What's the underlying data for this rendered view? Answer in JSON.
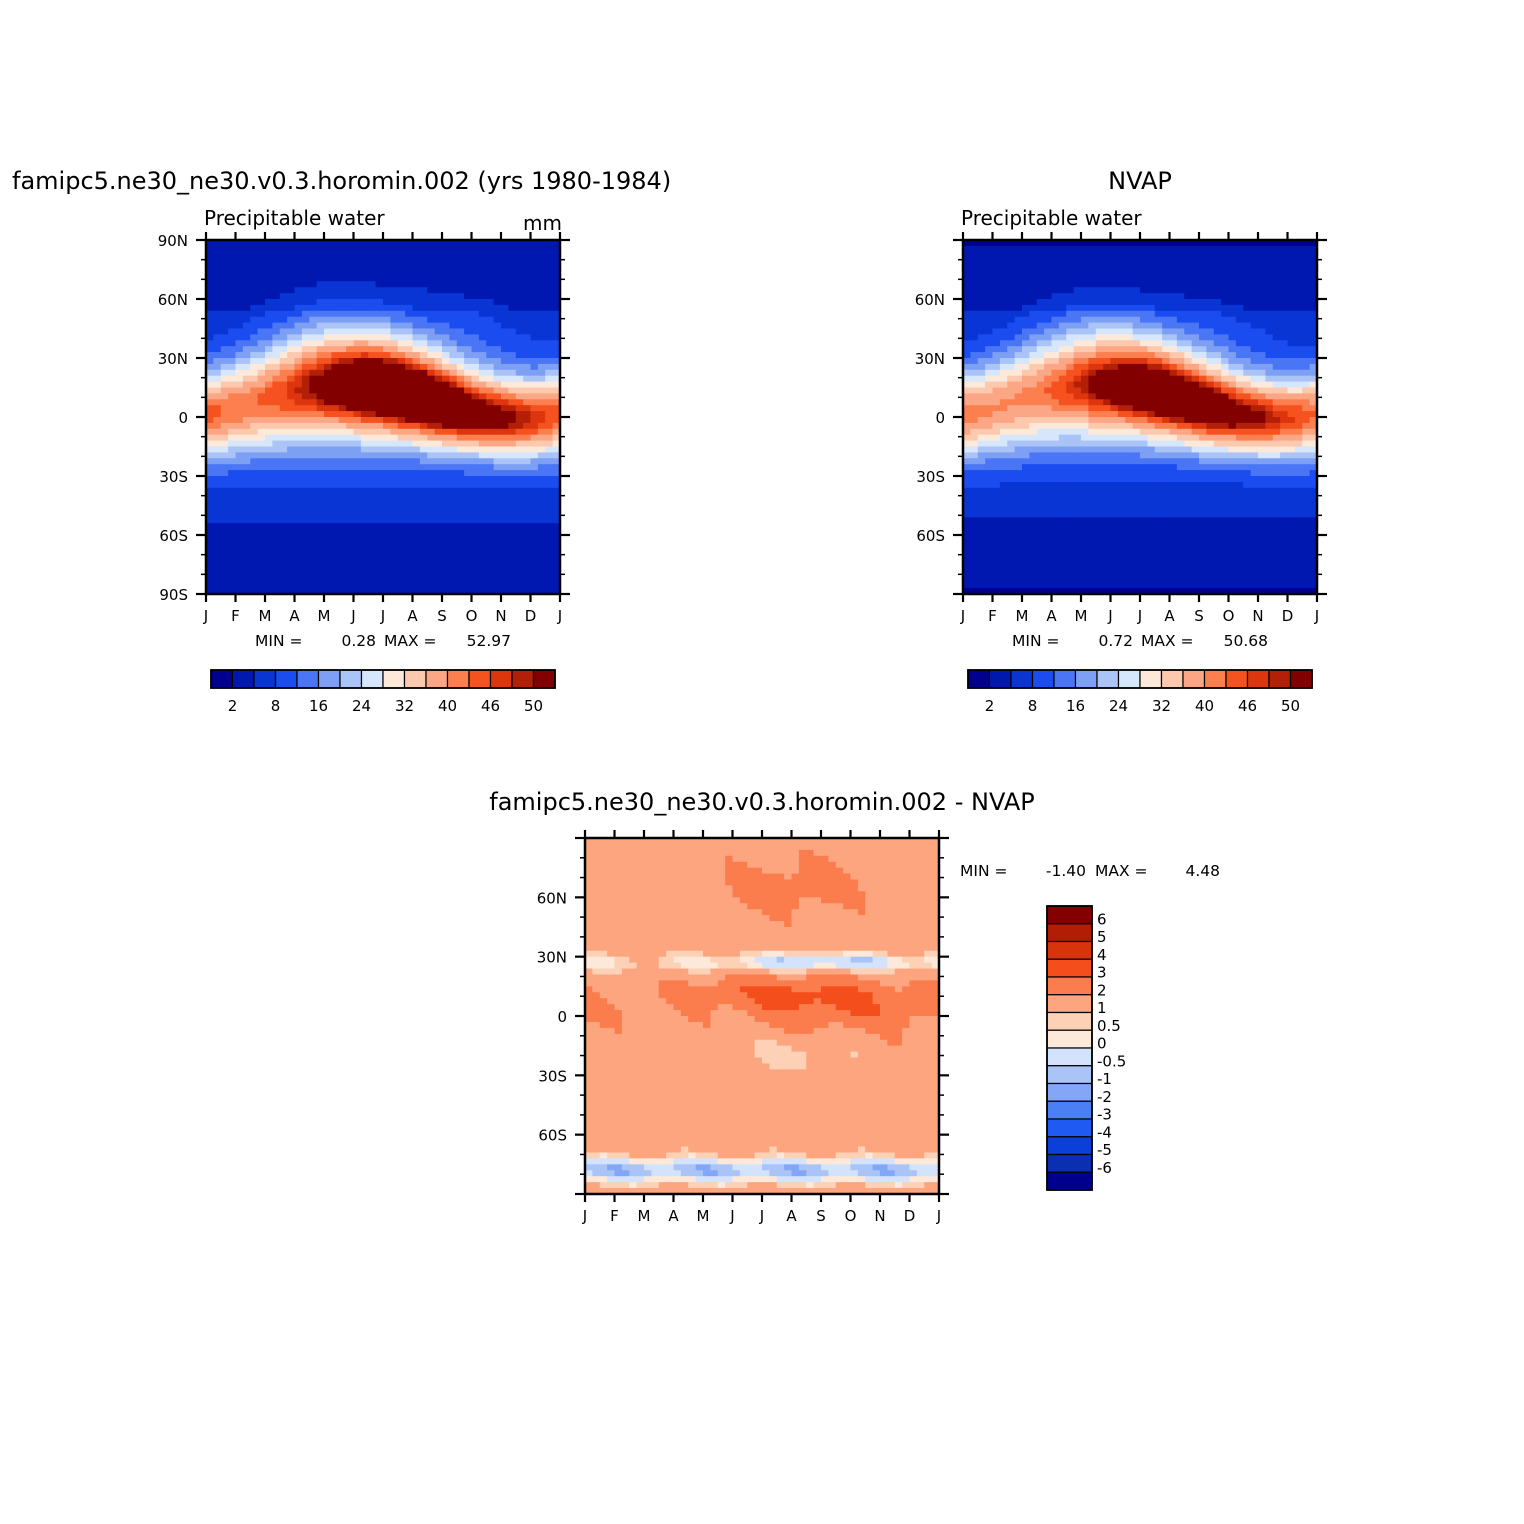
{
  "palette": {
    "abs": [
      "#00008f",
      "#0018b0",
      "#0a35d5",
      "#1a4cf0",
      "#4a76f6",
      "#7da0f5",
      "#aac4f8",
      "#d6e6fb",
      "#fde9d9",
      "#fcc9ae",
      "#fba785",
      "#fb7f4f",
      "#f6521f",
      "#dd360e",
      "#b42007",
      "#830000"
    ],
    "diff": [
      "#00008f",
      "#0a2fb0",
      "#0a40d8",
      "#1f5af3",
      "#4a7ff6",
      "#84a6f6",
      "#aac4f8",
      "#d3e3fc",
      "#fde9d9",
      "#fcd1b5",
      "#fca57f",
      "#fb7c4c",
      "#f44e1c",
      "#d8340b",
      "#b11e05",
      "#840000"
    ]
  },
  "months": [
    "J",
    "F",
    "M",
    "A",
    "M",
    "J",
    "J",
    "A",
    "S",
    "O",
    "N",
    "D",
    "J"
  ],
  "chart_data": [
    {
      "type": "heatmap",
      "title": "famipc5.ne30_ne30.v0.3.horomin.002 (yrs 1980-1984)",
      "subtitle": "Precipitable water",
      "units": "mm",
      "x": [
        "J",
        "F",
        "M",
        "A",
        "M",
        "J",
        "J",
        "A",
        "S",
        "O",
        "N",
        "D",
        "J"
      ],
      "yticks": [
        "90N",
        "60N",
        "30N",
        "0",
        "30S",
        "60S",
        "90S"
      ],
      "ylim": [
        -90,
        90
      ],
      "colorbar_labels": [
        "2",
        "8",
        "16",
        "24",
        "32",
        "40",
        "46",
        "50"
      ],
      "min": "0.28",
      "max": "52.97",
      "itcz_peak_mm": 52.97
    },
    {
      "type": "heatmap",
      "title": "NVAP",
      "subtitle": "Precipitable water",
      "x": [
        "J",
        "F",
        "M",
        "A",
        "M",
        "J",
        "J",
        "A",
        "S",
        "O",
        "N",
        "D",
        "J"
      ],
      "yticks": [
        "60N",
        "30N",
        "0",
        "30S",
        "60S"
      ],
      "ylim": [
        -90,
        90
      ],
      "colorbar_labels": [
        "2",
        "8",
        "16",
        "24",
        "32",
        "40",
        "46",
        "50"
      ],
      "min": "0.72",
      "max": "50.68",
      "itcz_peak_mm": 50.68
    },
    {
      "type": "heatmap",
      "title": "famipc5.ne30_ne30.v0.3.horomin.002 - NVAP",
      "x": [
        "J",
        "F",
        "M",
        "A",
        "M",
        "J",
        "J",
        "A",
        "S",
        "O",
        "N",
        "D",
        "J"
      ],
      "yticks": [
        "60N",
        "30N",
        "0",
        "30S",
        "60S"
      ],
      "ylim": [
        -90,
        90
      ],
      "colorbar_labels": [
        "6",
        "5",
        "4",
        "3",
        "2",
        "1",
        "0.5",
        "0",
        "-0.5",
        "-1",
        "-2",
        "-3",
        "-4",
        "-5",
        "-6"
      ],
      "min": "-1.40",
      "max": "4.48"
    }
  ],
  "stats": {
    "p1": {
      "min_label": "MIN =",
      "min": "0.28",
      "max_label": "MAX =",
      "max": "52.97"
    },
    "p2": {
      "min_label": "MIN =",
      "min": "0.72",
      "max_label": "MAX =",
      "max": "50.68"
    },
    "p3": {
      "min_label": "MIN =",
      "min": "-1.40",
      "max_label": "MAX =",
      "max": "4.48"
    }
  }
}
